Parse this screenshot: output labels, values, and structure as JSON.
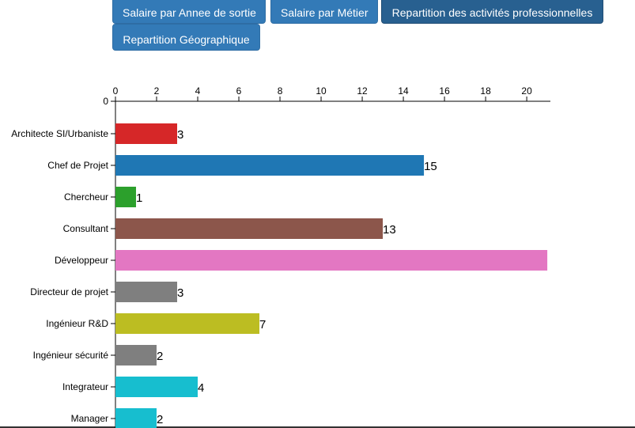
{
  "buttons": {
    "annee": "Salaire par Annee de sortie",
    "metier": "Salaire par Métier",
    "activites": "Repartition des activités professionnelles",
    "geo": "Repartition Géographique"
  },
  "chart_data": {
    "type": "bar",
    "orientation": "horizontal",
    "categories": [
      "Architecte SI/Urbaniste",
      "Chef de Projet",
      "Chercheur",
      "Consultant",
      "Développeur",
      "Directeur de projet",
      "Ingénieur R&D",
      "Ingénieur sécurité",
      "Integrateur",
      "Manager"
    ],
    "values": [
      3,
      15,
      1,
      13,
      21,
      3,
      7,
      2,
      4,
      2
    ],
    "value_labels": [
      "3",
      "15",
      "1",
      "13",
      "",
      "3",
      "7",
      "2",
      "4",
      "2"
    ],
    "colors": [
      "#d62728",
      "#1f77b4",
      "#2ca02c",
      "#8c564b",
      "#e377c2",
      "#7f7f7f",
      "#bcbd22",
      "#7f7f7f",
      "#17becf",
      "#17becf"
    ],
    "x_ticks": [
      "0",
      "2",
      "4",
      "6",
      "8",
      "10",
      "12",
      "14",
      "16",
      "18",
      "20"
    ],
    "y_zero_label": "0",
    "xlim": [
      0,
      21.15
    ],
    "xaxis_position": "top",
    "grid": false,
    "title": "",
    "xlabel": "",
    "ylabel": ""
  }
}
